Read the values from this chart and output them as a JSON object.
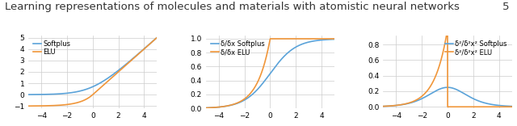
{
  "title": "Learning representations of molecules and materials with atomistic neural networks",
  "title_fontsize": 9.5,
  "page_number": "5",
  "xlim": [
    -5,
    5
  ],
  "xticks": [
    -4,
    -2,
    0,
    2,
    4
  ],
  "plot1": {
    "ylim": [
      -1.2,
      5.2
    ],
    "yticks": [
      -1,
      0,
      1,
      2,
      3,
      4,
      5
    ],
    "legend": [
      "Softplus",
      "ELU"
    ],
    "colors": [
      "#5ba3d9",
      "#f0963a"
    ]
  },
  "plot2": {
    "ylim": [
      0.0,
      1.05
    ],
    "yticks": [
      0.0,
      0.2,
      0.4,
      0.6,
      0.8,
      1.0
    ],
    "legend": [
      "δ/δx Softplus",
      "δ/δx ELU"
    ],
    "colors": [
      "#5ba3d9",
      "#f0963a"
    ]
  },
  "plot3": {
    "ylim": [
      -0.02,
      0.92
    ],
    "yticks": [
      0.0,
      0.2,
      0.4,
      0.6,
      0.8
    ],
    "legend": [
      "δ²/δ²x² Softplus",
      "δ²/δ²x² ELU"
    ],
    "colors": [
      "#5ba3d9",
      "#f0963a"
    ]
  },
  "line_width": 1.2,
  "tick_fontsize": 6.5,
  "legend_fontsize": 6.0,
  "bg_color": "#ffffff",
  "grid_color": "#cccccc"
}
